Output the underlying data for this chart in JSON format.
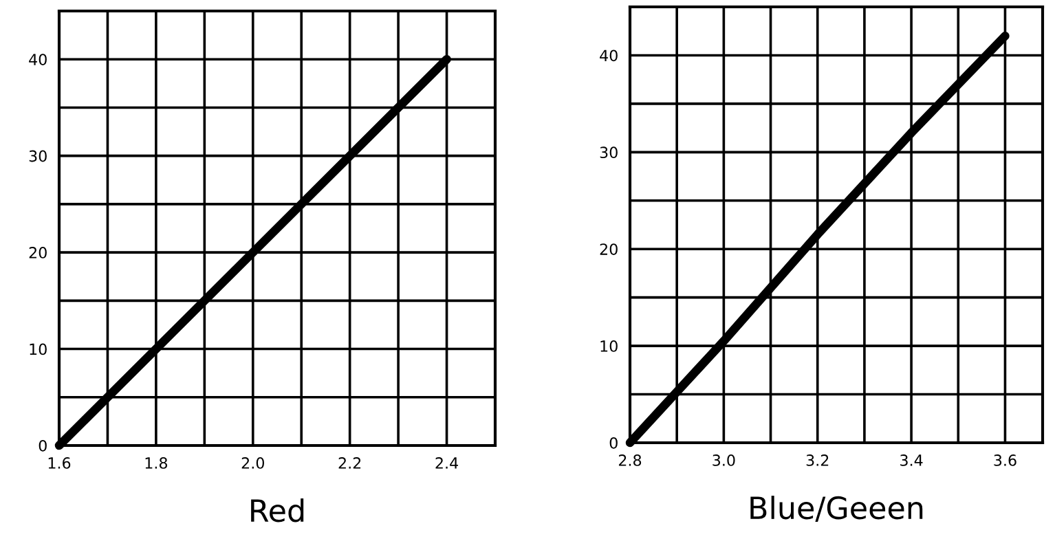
{
  "chart_data": [
    {
      "type": "line",
      "xlabel": "Red",
      "x": [
        1.6,
        2.4
      ],
      "series": [
        {
          "color": "#000000",
          "values": [
            0,
            40
          ]
        }
      ],
      "xlim": [
        1.6,
        2.5
      ],
      "ylim": [
        0,
        45
      ],
      "xticks": [
        1.6,
        {
          "value": 1.7,
          "label": null
        },
        1.8,
        {
          "value": 1.9,
          "label": null
        },
        {
          "value": 2,
          "label": "2.0"
        },
        {
          "value": 2.1,
          "label": null
        },
        2.2,
        {
          "value": 2.3,
          "label": null
        },
        2.4,
        {
          "value": 2.5,
          "label": null
        }
      ],
      "yticks": [
        0,
        {
          "value": 5,
          "label": null
        },
        10,
        {
          "value": 15,
          "label": null
        },
        20,
        {
          "value": 25,
          "label": null
        },
        30,
        {
          "value": 35,
          "label": null
        },
        40,
        {
          "value": 45,
          "label": null
        }
      ],
      "grid": true,
      "marker": "none",
      "line_style": "solid"
    },
    {
      "type": "line",
      "xlabel": "Blue/Geeen",
      "x": [
        2.8,
        3.0,
        3.2,
        3.4,
        3.6
      ],
      "series": [
        {
          "color": "#000000",
          "values": [
            0,
            10.5,
            21.5,
            32,
            42
          ]
        }
      ],
      "xlim": [
        2.8,
        3.68
      ],
      "ylim": [
        0,
        45
      ],
      "xticks": [
        2.8,
        {
          "value": 2.9,
          "label": null
        },
        {
          "value": 3,
          "label": "3.0"
        },
        {
          "value": 3.1,
          "label": null
        },
        3.2,
        {
          "value": 3.3,
          "label": null
        },
        3.4,
        {
          "value": 3.5,
          "label": null
        },
        3.6
      ],
      "yticks": [
        0,
        {
          "value": 5,
          "label": null
        },
        10,
        {
          "value": 15,
          "label": null
        },
        20,
        {
          "value": 25,
          "label": null
        },
        30,
        {
          "value": 35,
          "label": null
        },
        40,
        {
          "value": 45,
          "label": null
        }
      ],
      "grid": true,
      "marker": "none",
      "line_style": "solid"
    }
  ]
}
